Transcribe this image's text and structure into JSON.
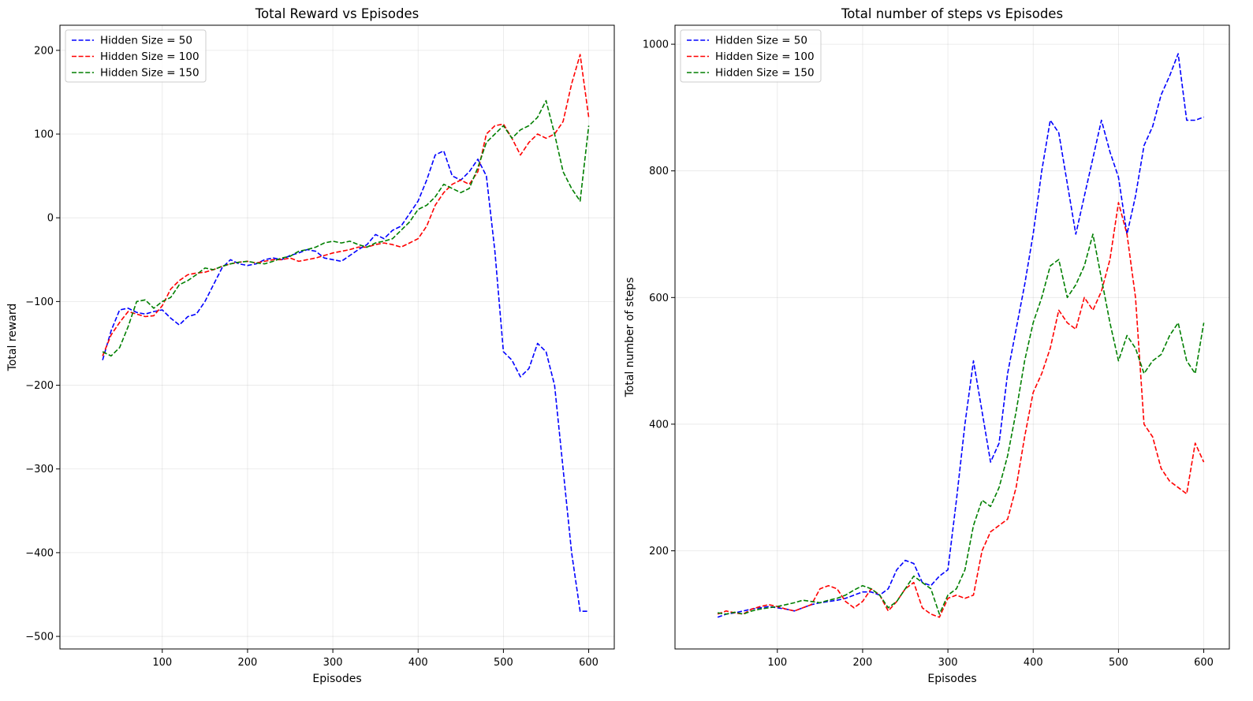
{
  "chart_data": [
    {
      "type": "line",
      "title": "Total Reward vs Episodes",
      "xlabel": "Episodes",
      "ylabel": "Total reward",
      "xlim": [
        -20,
        630
      ],
      "ylim": [
        -515,
        230
      ],
      "xticks": [
        100,
        200,
        300,
        400,
        500,
        600
      ],
      "yticks": [
        -500,
        -400,
        -300,
        -200,
        -100,
        0,
        100,
        200
      ],
      "grid": true,
      "legend_position": "top-left",
      "line_style": "dashed",
      "series": [
        {
          "name": "Hidden Size = 50",
          "color": "#0000ff",
          "x": [
            30,
            40,
            50,
            60,
            70,
            80,
            90,
            100,
            110,
            120,
            130,
            140,
            150,
            160,
            170,
            180,
            190,
            200,
            210,
            220,
            230,
            240,
            250,
            260,
            270,
            280,
            290,
            300,
            310,
            320,
            330,
            340,
            350,
            360,
            370,
            380,
            390,
            400,
            410,
            420,
            430,
            440,
            450,
            460,
            470,
            480,
            490,
            500,
            510,
            520,
            530,
            540,
            550,
            560,
            570,
            580,
            590,
            600
          ],
          "values": [
            -170,
            -135,
            -110,
            -108,
            -113,
            -115,
            -112,
            -110,
            -120,
            -128,
            -118,
            -115,
            -100,
            -80,
            -60,
            -50,
            -55,
            -57,
            -55,
            -50,
            -48,
            -50,
            -45,
            -42,
            -38,
            -40,
            -48,
            -50,
            -52,
            -45,
            -38,
            -32,
            -20,
            -25,
            -15,
            -10,
            5,
            20,
            45,
            75,
            80,
            50,
            45,
            55,
            70,
            50,
            -40,
            -160,
            -170,
            -190,
            -180,
            -150,
            -160,
            -200,
            -300,
            -400,
            -470,
            -470
          ]
        },
        {
          "name": "Hidden Size = 100",
          "color": "#ff0000",
          "x": [
            30,
            40,
            50,
            60,
            70,
            80,
            90,
            100,
            110,
            120,
            130,
            140,
            150,
            160,
            170,
            180,
            190,
            200,
            210,
            220,
            230,
            240,
            250,
            260,
            270,
            280,
            290,
            300,
            310,
            320,
            330,
            340,
            350,
            360,
            370,
            380,
            390,
            400,
            410,
            420,
            430,
            440,
            450,
            460,
            470,
            480,
            490,
            500,
            510,
            520,
            530,
            540,
            550,
            560,
            570,
            580,
            590,
            600
          ],
          "values": [
            -165,
            -140,
            -125,
            -112,
            -115,
            -118,
            -117,
            -105,
            -85,
            -75,
            -68,
            -66,
            -65,
            -62,
            -58,
            -55,
            -53,
            -52,
            -54,
            -52,
            -50,
            -50,
            -48,
            -52,
            -50,
            -48,
            -45,
            -42,
            -40,
            -38,
            -35,
            -35,
            -32,
            -30,
            -32,
            -35,
            -30,
            -25,
            -10,
            15,
            30,
            40,
            45,
            40,
            55,
            100,
            110,
            112,
            95,
            75,
            90,
            100,
            95,
            100,
            115,
            160,
            195,
            120
          ]
        },
        {
          "name": "Hidden Size = 150",
          "color": "#007f00",
          "x": [
            30,
            40,
            50,
            60,
            70,
            80,
            90,
            100,
            110,
            120,
            130,
            140,
            150,
            160,
            170,
            180,
            190,
            200,
            210,
            220,
            230,
            240,
            250,
            260,
            270,
            280,
            290,
            300,
            310,
            320,
            330,
            340,
            350,
            360,
            370,
            380,
            390,
            400,
            410,
            420,
            430,
            440,
            450,
            460,
            470,
            480,
            490,
            500,
            510,
            520,
            530,
            540,
            550,
            560,
            570,
            580,
            590,
            600
          ],
          "values": [
            -160,
            -165,
            -155,
            -130,
            -100,
            -98,
            -108,
            -100,
            -95,
            -80,
            -75,
            -68,
            -60,
            -62,
            -58,
            -55,
            -53,
            -52,
            -54,
            -55,
            -52,
            -48,
            -46,
            -40,
            -38,
            -35,
            -30,
            -28,
            -30,
            -28,
            -32,
            -35,
            -30,
            -28,
            -25,
            -15,
            -5,
            10,
            15,
            25,
            40,
            35,
            30,
            35,
            60,
            90,
            100,
            110,
            95,
            105,
            110,
            120,
            140,
            100,
            55,
            35,
            20,
            110
          ]
        }
      ]
    },
    {
      "type": "line",
      "title": "Total number of steps vs Episodes",
      "xlabel": "Episodes",
      "ylabel": "Total number of steps",
      "xlim": [
        -20,
        630
      ],
      "ylim": [
        45,
        1030
      ],
      "xticks": [
        100,
        200,
        300,
        400,
        500,
        600
      ],
      "yticks": [
        200,
        400,
        600,
        800,
        1000
      ],
      "grid": true,
      "legend_position": "top-left",
      "line_style": "dashed",
      "series": [
        {
          "name": "Hidden Size = 50",
          "color": "#0000ff",
          "x": [
            30,
            40,
            50,
            60,
            70,
            80,
            90,
            100,
            110,
            120,
            130,
            140,
            150,
            160,
            170,
            180,
            190,
            200,
            210,
            220,
            230,
            240,
            250,
            260,
            270,
            280,
            290,
            300,
            310,
            320,
            330,
            340,
            350,
            360,
            370,
            380,
            390,
            400,
            410,
            420,
            430,
            440,
            450,
            460,
            470,
            480,
            490,
            500,
            510,
            520,
            530,
            540,
            550,
            560,
            570,
            580,
            590,
            600
          ],
          "values": [
            95,
            100,
            102,
            105,
            108,
            110,
            112,
            110,
            108,
            105,
            110,
            115,
            118,
            120,
            122,
            125,
            130,
            135,
            135,
            130,
            140,
            170,
            185,
            180,
            150,
            145,
            160,
            170,
            280,
            400,
            500,
            420,
            340,
            370,
            480,
            550,
            620,
            700,
            800,
            880,
            860,
            780,
            700,
            760,
            820,
            880,
            830,
            790,
            700,
            760,
            840,
            870,
            920,
            950,
            985,
            880,
            880,
            885
          ]
        },
        {
          "name": "Hidden Size = 100",
          "color": "#ff0000",
          "x": [
            30,
            40,
            50,
            60,
            70,
            80,
            90,
            100,
            110,
            120,
            130,
            140,
            150,
            160,
            170,
            180,
            190,
            200,
            210,
            220,
            230,
            240,
            250,
            260,
            270,
            280,
            290,
            300,
            310,
            320,
            330,
            340,
            350,
            360,
            370,
            380,
            390,
            400,
            410,
            420,
            430,
            440,
            450,
            460,
            470,
            480,
            490,
            500,
            510,
            520,
            530,
            540,
            550,
            560,
            570,
            580,
            590,
            600
          ],
          "values": [
            100,
            105,
            102,
            100,
            108,
            112,
            115,
            112,
            108,
            105,
            110,
            115,
            140,
            145,
            140,
            120,
            110,
            120,
            140,
            130,
            105,
            120,
            140,
            150,
            110,
            100,
            95,
            125,
            130,
            125,
            130,
            200,
            230,
            240,
            250,
            300,
            380,
            450,
            480,
            520,
            580,
            560,
            550,
            600,
            580,
            610,
            660,
            750,
            700,
            600,
            400,
            380,
            330,
            310,
            300,
            290,
            370,
            340
          ]
        },
        {
          "name": "Hidden Size = 150",
          "color": "#007f00",
          "x": [
            30,
            40,
            50,
            60,
            70,
            80,
            90,
            100,
            110,
            120,
            130,
            140,
            150,
            160,
            170,
            180,
            190,
            200,
            210,
            220,
            230,
            240,
            250,
            260,
            270,
            280,
            290,
            300,
            310,
            320,
            330,
            340,
            350,
            360,
            370,
            380,
            390,
            400,
            410,
            420,
            430,
            440,
            450,
            460,
            470,
            480,
            490,
            500,
            510,
            520,
            530,
            540,
            550,
            560,
            570,
            580,
            590,
            600
          ],
          "values": [
            102,
            100,
            103,
            100,
            105,
            108,
            110,
            112,
            115,
            118,
            122,
            120,
            118,
            122,
            125,
            130,
            138,
            145,
            140,
            130,
            110,
            120,
            140,
            160,
            150,
            140,
            100,
            130,
            140,
            170,
            240,
            280,
            270,
            300,
            350,
            420,
            500,
            560,
            600,
            650,
            660,
            600,
            620,
            650,
            700,
            630,
            560,
            500,
            540,
            520,
            480,
            500,
            510,
            540,
            560,
            500,
            480,
            560
          ]
        }
      ]
    }
  ]
}
